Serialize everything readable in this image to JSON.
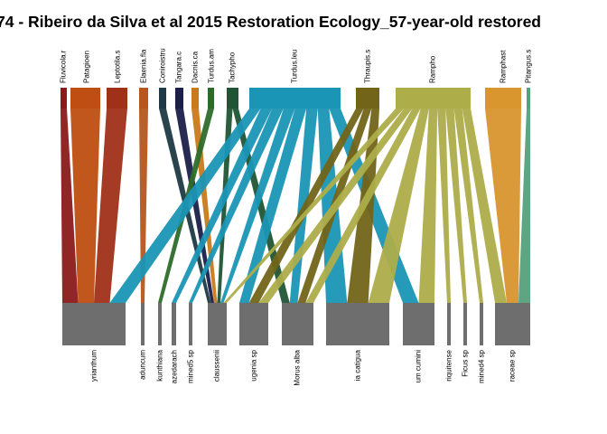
{
  "title": "74 - Ribeiro da Silva et al 2015 Restoration Ecology_57-year-old restored",
  "colors": {
    "lower_box": "#6e6e6e",
    "background": "#ffffff"
  },
  "higher_species": [
    {
      "label": "Fluvicola.r",
      "color": "#8b1a1a"
    },
    {
      "label": "Patagioen",
      "color": "#bf4e12"
    },
    {
      "label": "Leptotila.s",
      "color": "#a03018"
    },
    {
      "label": "Elaenia.fla",
      "color": "#b5571f"
    },
    {
      "label": "Coniroistru",
      "color": "#1f3a45"
    },
    {
      "label": "Tangara.c",
      "color": "#1b1f4a"
    },
    {
      "label": "Dacnis.ca",
      "color": "#c87a1c"
    },
    {
      "label": "Turdus.am",
      "color": "#2e6b2a"
    },
    {
      "label": "Tachypho",
      "color": "#1f5534"
    },
    {
      "label": "Turdus.leu",
      "color": "#1a95b5"
    },
    {
      "label": "Thraupis.s",
      "color": "#726418"
    },
    {
      "label": "Rampho",
      "color": "#adad4a"
    },
    {
      "label": "Ramphast",
      "color": "#d9952e"
    },
    {
      "label": "Pitangus.s",
      "color": "#55a17c"
    }
  ],
  "lower_species": [
    {
      "label": "yrianthum"
    },
    {
      "label": "aduncum"
    },
    {
      "label": "kunthiana"
    },
    {
      "label": "azedarach"
    },
    {
      "label": "mined5 sp"
    },
    {
      "label": "claussenii"
    },
    {
      "label": "ugenia sp"
    },
    {
      "label": "Morus alba"
    },
    {
      "label": "ia catigua"
    },
    {
      "label": "um cumini"
    },
    {
      "label": "riquitense"
    },
    {
      "label": "Ficus sp"
    },
    {
      "label": "mined4 sp"
    },
    {
      "label": "raceae sp"
    }
  ],
  "interactions": [
    {
      "from": "Fluvicola.r",
      "to": "yrianthum"
    },
    {
      "from": "Patagioen",
      "to": "yrianthum"
    },
    {
      "from": "Leptotila.s",
      "to": "yrianthum"
    },
    {
      "from": "Elaenia.fla",
      "to": "aduncum"
    },
    {
      "from": "Coniroistru",
      "to": "claussenii"
    },
    {
      "from": "Tangara.c",
      "to": "claussenii"
    },
    {
      "from": "Dacnis.ca",
      "to": "claussenii"
    },
    {
      "from": "Turdus.am",
      "to": "kunthiana"
    },
    {
      "from": "Tachypho",
      "to": "claussenii"
    },
    {
      "from": "Tachypho",
      "to": "Morus alba"
    },
    {
      "from": "Turdus.leu",
      "to": "yrianthum"
    },
    {
      "from": "Turdus.leu",
      "to": "azedarach"
    },
    {
      "from": "Turdus.leu",
      "to": "mined5 sp"
    },
    {
      "from": "Turdus.leu",
      "to": "claussenii"
    },
    {
      "from": "Turdus.leu",
      "to": "ugenia sp"
    },
    {
      "from": "Turdus.leu",
      "to": "Morus alba"
    },
    {
      "from": "Turdus.leu",
      "to": "ia catigua"
    },
    {
      "from": "Turdus.leu",
      "to": "um cumini"
    },
    {
      "from": "Thraupis.s",
      "to": "ugenia sp"
    },
    {
      "from": "Thraupis.s",
      "to": "Morus alba"
    },
    {
      "from": "Thraupis.s",
      "to": "ia catigua"
    },
    {
      "from": "Rampho",
      "to": "claussenii"
    },
    {
      "from": "Rampho",
      "to": "ugenia sp"
    },
    {
      "from": "Rampho",
      "to": "Morus alba"
    },
    {
      "from": "Rampho",
      "to": "ia catigua"
    },
    {
      "from": "Rampho",
      "to": "um cumini"
    },
    {
      "from": "Rampho",
      "to": "riquitense"
    },
    {
      "from": "Rampho",
      "to": "Ficus sp"
    },
    {
      "from": "Rampho",
      "to": "mined4 sp"
    },
    {
      "from": "Rampho",
      "to": "raceae sp"
    },
    {
      "from": "Ramphast",
      "to": "raceae sp"
    },
    {
      "from": "Pitangus.s",
      "to": "raceae sp"
    }
  ]
}
